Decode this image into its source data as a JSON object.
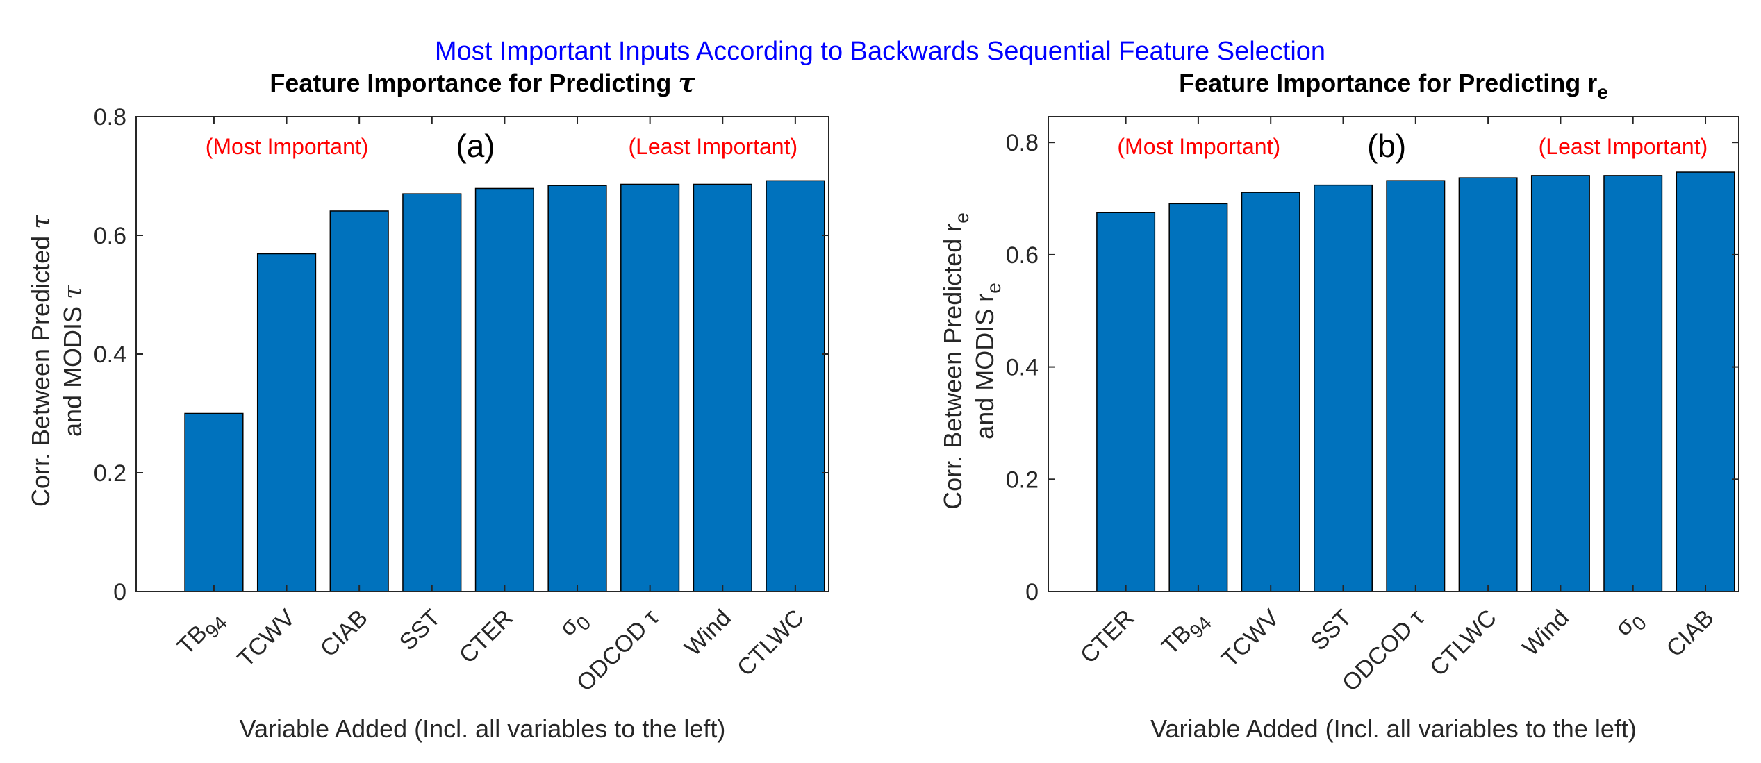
{
  "main_title": "Most Important Inputs According to Backwards Sequential Feature Selection",
  "colors": {
    "bar": "#0072bd",
    "title": "#0000ff",
    "annotation": "#ff0000"
  },
  "chart_data": [
    {
      "type": "bar",
      "title": {
        "text": "Feature Importance for Predicting ",
        "symbol": "τ",
        "sub": ""
      },
      "panel_label": "(a)",
      "annotations": {
        "left": "(Most Important)",
        "right": "(Least Important)"
      },
      "xlabel": "Variable Added (Incl. all variables to the left)",
      "ylabel": [
        {
          "text": "Corr. Between Predicted ",
          "symbol": "τ",
          "sub": ""
        },
        {
          "text": "and MODIS ",
          "symbol": "τ",
          "sub": ""
        }
      ],
      "categories": [
        {
          "base": "TB",
          "sub": "94"
        },
        {
          "base": "TCWV",
          "sub": ""
        },
        {
          "base": "CIAB",
          "sub": ""
        },
        {
          "base": "SST",
          "sub": ""
        },
        {
          "base": "CTER",
          "sub": ""
        },
        {
          "base": "σ",
          "sub": "0"
        },
        {
          "base": "ODCOD τ",
          "sub": ""
        },
        {
          "base": "Wind",
          "sub": ""
        },
        {
          "base": "CTLWC",
          "sub": ""
        }
      ],
      "values": [
        0.3,
        0.569,
        0.641,
        0.67,
        0.679,
        0.684,
        0.686,
        0.686,
        0.692
      ],
      "ylim": [
        0,
        0.8
      ],
      "xlim": [
        -0.07,
        9.46
      ],
      "yticks": [
        "0",
        "0.2",
        "0.4",
        "0.6",
        "0.8"
      ],
      "ytick_values": [
        0,
        0.2,
        0.4,
        0.6,
        0.8
      ],
      "grid": false
    },
    {
      "type": "bar",
      "title": {
        "text": "Feature Importance for Predicting ",
        "symbol": "r",
        "sub": "e"
      },
      "panel_label": "(b)",
      "annotations": {
        "left": "(Most Important)",
        "right": "(Least Important)"
      },
      "xlabel": "Variable Added (Incl. all variables to the left)",
      "ylabel": [
        {
          "text": "Corr. Between Predicted ",
          "symbol": "r",
          "sub": "e"
        },
        {
          "text": "and MODIS ",
          "symbol": "r",
          "sub": "e"
        }
      ],
      "categories": [
        {
          "base": "CTER",
          "sub": ""
        },
        {
          "base": "TB",
          "sub": "94"
        },
        {
          "base": "TCWV",
          "sub": ""
        },
        {
          "base": "SST",
          "sub": ""
        },
        {
          "base": "ODCOD τ",
          "sub": ""
        },
        {
          "base": "CTLWC",
          "sub": ""
        },
        {
          "base": "Wind",
          "sub": ""
        },
        {
          "base": "σ",
          "sub": "0"
        },
        {
          "base": "CIAB",
          "sub": ""
        }
      ],
      "values": [
        0.675,
        0.691,
        0.711,
        0.724,
        0.732,
        0.737,
        0.741,
        0.741,
        0.747
      ],
      "ylim": [
        0,
        0.846
      ],
      "xlim": [
        -0.07,
        9.46
      ],
      "yticks": [
        "0",
        "0.2",
        "0.4",
        "0.6",
        "0.8"
      ],
      "ytick_values": [
        0,
        0.2,
        0.4,
        0.6,
        0.8
      ],
      "grid": false
    }
  ]
}
